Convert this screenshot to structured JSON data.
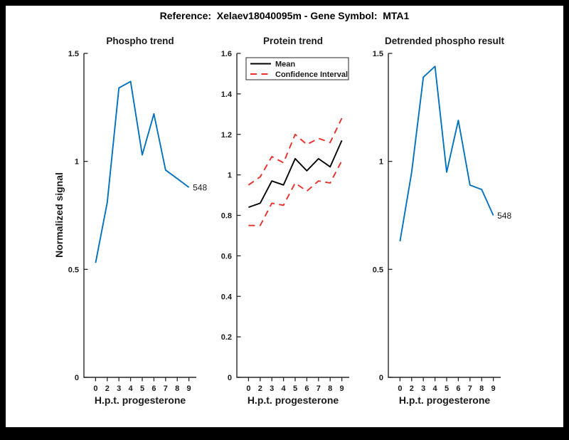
{
  "figure": {
    "title": "Reference:  Xelaev18040095m - Gene Symbol:  MTA1",
    "background_color": "#000000",
    "paper_color": "#ffffff",
    "text_color": "#1a1a1a",
    "axis_color": "#262626"
  },
  "chart_data": [
    {
      "type": "line",
      "title": "Phospho trend",
      "xlabel": "H.p.t. progesterone",
      "ylabel": "Normalized signal",
      "x": [
        0,
        2,
        3,
        4,
        5,
        6,
        7,
        8,
        9
      ],
      "x_tick_labels": [
        "0",
        "2",
        "3",
        "4",
        "5",
        "6",
        "7",
        "8",
        "9"
      ],
      "ylim": [
        0,
        1.5
      ],
      "yticks": [
        0,
        0.5,
        1,
        1.5
      ],
      "ytick_labels": [
        "0",
        "0.5",
        "1",
        "1.5"
      ],
      "grid": false,
      "legend": null,
      "end_label": "548",
      "series": [
        {
          "name": "phospho-signal",
          "color": "#0072BD",
          "style": "solid",
          "values": [
            0.53,
            0.81,
            1.34,
            1.37,
            1.03,
            1.22,
            0.96,
            0.92,
            0.88
          ]
        }
      ]
    },
    {
      "type": "line",
      "title": "Protein trend",
      "xlabel": "H.p.t. progesterone",
      "ylabel": null,
      "x": [
        0,
        2,
        3,
        4,
        5,
        6,
        7,
        8,
        9
      ],
      "x_tick_labels": [
        "0",
        "2",
        "3",
        "4",
        "5",
        "6",
        "7",
        "8",
        "9"
      ],
      "ylim": [
        0,
        1.6
      ],
      "yticks": [
        0,
        0.2,
        0.4,
        0.6,
        0.8,
        1,
        1.2,
        1.4,
        1.6
      ],
      "ytick_labels": [
        "0",
        "0.2",
        "0.4",
        "0.6",
        "0.8",
        "1",
        "1.2",
        "1.4",
        "1.6"
      ],
      "grid": false,
      "legend": {
        "position": "top-left",
        "entries": [
          {
            "label": "Mean",
            "color": "#000000",
            "style": "solid"
          },
          {
            "label": "Confidence Interval",
            "color": "#E8302A",
            "style": "dashed"
          }
        ]
      },
      "end_label": null,
      "series": [
        {
          "name": "confidence-upper",
          "color": "#E8302A",
          "style": "dashed",
          "values": [
            0.95,
            0.99,
            1.09,
            1.06,
            1.2,
            1.15,
            1.18,
            1.16,
            1.28
          ]
        },
        {
          "name": "confidence-lower",
          "color": "#E8302A",
          "style": "dashed",
          "values": [
            0.75,
            0.75,
            0.86,
            0.85,
            0.96,
            0.92,
            0.97,
            0.96,
            1.07
          ]
        },
        {
          "name": "mean",
          "color": "#000000",
          "style": "solid",
          "values": [
            0.84,
            0.86,
            0.97,
            0.95,
            1.08,
            1.02,
            1.08,
            1.04,
            1.17
          ]
        }
      ]
    },
    {
      "type": "line",
      "title": "Detrended phospho result",
      "xlabel": "H.p.t. progesterone",
      "ylabel": null,
      "x": [
        0,
        2,
        3,
        4,
        5,
        6,
        7,
        8,
        9
      ],
      "x_tick_labels": [
        "0",
        "2",
        "3",
        "4",
        "5",
        "6",
        "7",
        "8",
        "9"
      ],
      "ylim": [
        0,
        1.5
      ],
      "yticks": [
        0,
        0.5,
        1,
        1.5
      ],
      "ytick_labels": [
        "0",
        "0.5",
        "1",
        "1.5"
      ],
      "grid": false,
      "legend": null,
      "end_label": "548",
      "series": [
        {
          "name": "detrended-phospho-signal",
          "color": "#0072BD",
          "style": "solid",
          "values": [
            0.63,
            0.95,
            1.39,
            1.44,
            0.95,
            1.19,
            0.89,
            0.87,
            0.75
          ]
        }
      ]
    }
  ]
}
